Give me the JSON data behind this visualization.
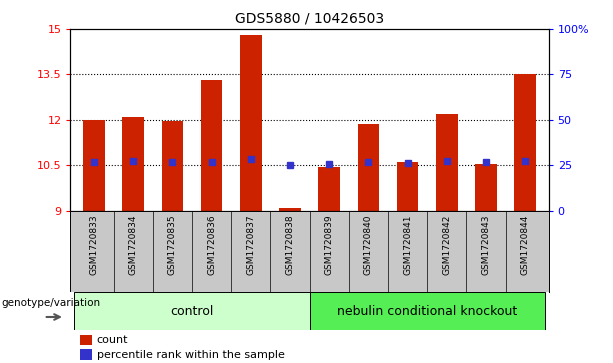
{
  "title": "GDS5880 / 10426503",
  "samples": [
    "GSM1720833",
    "GSM1720834",
    "GSM1720835",
    "GSM1720836",
    "GSM1720837",
    "GSM1720838",
    "GSM1720839",
    "GSM1720840",
    "GSM1720841",
    "GSM1720842",
    "GSM1720843",
    "GSM1720844"
  ],
  "bar_values": [
    12.0,
    12.1,
    11.95,
    13.3,
    14.8,
    9.1,
    10.45,
    11.85,
    10.6,
    12.2,
    10.55,
    13.5
  ],
  "percentile_values": [
    10.62,
    10.65,
    10.62,
    10.62,
    10.72,
    10.5,
    10.55,
    10.62,
    10.57,
    10.65,
    10.6,
    10.65
  ],
  "bar_color": "#cc2200",
  "marker_color": "#3333cc",
  "ylim_left": [
    9,
    15
  ],
  "ylim_right": [
    0,
    100
  ],
  "yticks_left": [
    9,
    10.5,
    12,
    13.5,
    15
  ],
  "ytick_labels_left": [
    "9",
    "10.5",
    "12",
    "13.5",
    "15"
  ],
  "yticks_right": [
    0,
    25,
    50,
    75,
    100
  ],
  "ytick_labels_right": [
    "0",
    "25",
    "50",
    "75",
    "100%"
  ],
  "grid_values": [
    10.5,
    12,
    13.5
  ],
  "group1_label": "control",
  "group2_label": "nebulin conditional knockout",
  "group1_indices": [
    0,
    1,
    2,
    3,
    4,
    5
  ],
  "group2_indices": [
    6,
    7,
    8,
    9,
    10,
    11
  ],
  "group1_color": "#ccffcc",
  "group2_color": "#55ee55",
  "geno_label": "genotype/variation",
  "legend_count_label": "count",
  "legend_percentile_label": "percentile rank within the sample",
  "bar_bottom": 9,
  "bar_width": 0.55,
  "background_color": "#ffffff",
  "plot_bg_color": "#ffffff",
  "tick_area_color": "#c8c8c8"
}
